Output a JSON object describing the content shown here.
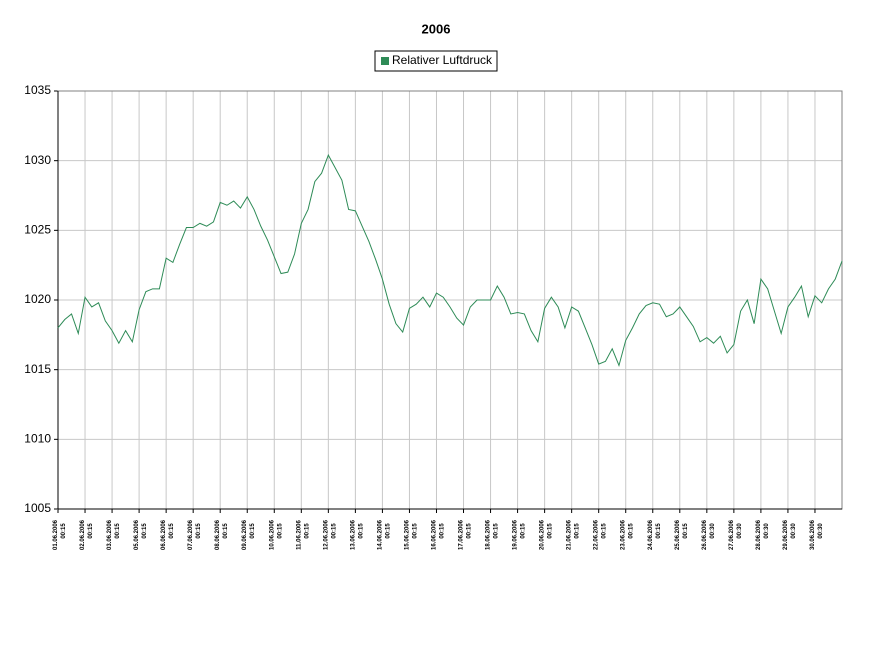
{
  "chart_data": {
    "type": "line",
    "title": "2006",
    "categories": [
      "01.06.2006 00:15",
      null,
      null,
      null,
      "02.06.2006 00:15",
      null,
      null,
      null,
      "03.06.2006 00:15",
      null,
      null,
      null,
      "05.06.2006 00:15",
      null,
      null,
      null,
      "06.06.2006 00:15",
      null,
      null,
      null,
      "07.06.2006 00:15",
      null,
      null,
      null,
      "08.06.2006 00:15",
      null,
      null,
      null,
      "09.06.2006 00:15",
      null,
      null,
      null,
      "10.06.2006 00:15",
      null,
      null,
      null,
      "11.06.2006 00:15",
      null,
      null,
      null,
      "12.06.2006 00:15",
      null,
      null,
      null,
      "13.06.2006 00:15",
      null,
      null,
      null,
      "14.06.2006 00:15",
      null,
      null,
      null,
      "15.06.2006 00:15",
      null,
      null,
      null,
      "16.06.2006 00:15",
      null,
      null,
      null,
      "17.06.2006 00:15",
      null,
      null,
      null,
      "18.06.2006 00:15",
      null,
      null,
      null,
      "19.06.2006 00:15",
      null,
      null,
      null,
      "20.06.2006 00:15",
      null,
      null,
      null,
      "21.06.2006 00:15",
      null,
      null,
      null,
      "22.06.2006 00:15",
      null,
      null,
      null,
      "23.06.2006 00:15",
      null,
      null,
      null,
      "24.06.2006 00:15",
      null,
      null,
      null,
      "25.06.2006 00:15",
      null,
      null,
      null,
      "26.06.2006 00:30",
      null,
      null,
      null,
      "27.06.2006 00:30",
      null,
      null,
      null,
      "28.06.2006 00:30",
      null,
      null,
      null,
      "29.06.2006 00:30",
      null,
      null,
      null,
      "30.06.2006 00:30",
      null,
      null,
      null,
      null
    ],
    "series": [
      {
        "name": "Relativer Luftdruck",
        "color": "#2e8b57",
        "values": [
          1018,
          1018.6,
          1019,
          1017.6,
          1020.2,
          1019.5,
          1019.8,
          1018.5,
          1017.8,
          1016.9,
          1017.8,
          1017,
          1019.3,
          1020.6,
          1020.8,
          1020.8,
          1023,
          1022.7,
          1024,
          1025.2,
          1025.2,
          1025.5,
          1025.3,
          1025.6,
          1027,
          1026.8,
          1027.1,
          1026.6,
          1027.4,
          1026.5,
          1025.3,
          1024.3,
          1023.1,
          1021.9,
          1022,
          1023.3,
          1025.5,
          1026.5,
          1028.5,
          1029.1,
          1030.4,
          1029.5,
          1028.6,
          1026.5,
          1026.4,
          1025.3,
          1024.2,
          1022.9,
          1021.5,
          1019.7,
          1018.3,
          1017.7,
          1019.4,
          1019.7,
          1020.2,
          1019.5,
          1020.5,
          1020.2,
          1019.5,
          1018.7,
          1018.2,
          1019.5,
          1020,
          1020,
          1020,
          1021,
          1020.2,
          1019,
          1019.1,
          1019,
          1017.8,
          1017,
          1019.4,
          1020.2,
          1019.5,
          1018,
          1019.5,
          1019.2,
          1018,
          1016.8,
          1015.4,
          1015.6,
          1016.5,
          1015.3,
          1017.1,
          1018,
          1019,
          1019.6,
          1019.8,
          1019.7,
          1018.8,
          1019,
          1019.5,
          1018.8,
          1018.1,
          1017,
          1017.3,
          1016.9,
          1017.4,
          1016.2,
          1016.8,
          1019.2,
          1020,
          1018.3,
          1021.5,
          1020.8,
          1019.2,
          1017.6,
          1019.5,
          1020.2,
          1021,
          1018.8,
          1020.3,
          1019.8,
          1020.8,
          1021.5,
          1022.8
        ]
      }
    ],
    "ylim": [
      1005,
      1035
    ],
    "yticks": [
      1005,
      1010,
      1015,
      1020,
      1025,
      1030,
      1035
    ],
    "grid": true,
    "legend": "top"
  }
}
